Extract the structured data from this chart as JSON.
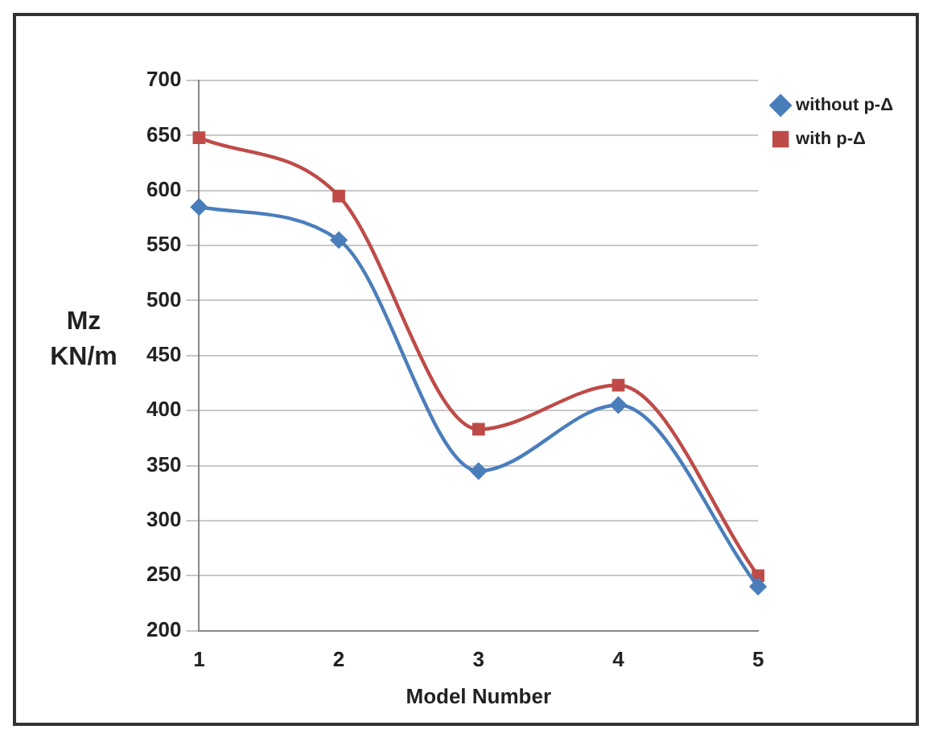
{
  "chart_data": {
    "type": "line",
    "xlabel": "Model Number",
    "ylabel": "Mz KN/m",
    "categories": [
      "1",
      "2",
      "3",
      "4",
      "5"
    ],
    "series": [
      {
        "name": "without p-Δ",
        "color": "#4a7ebb",
        "values": [
          585,
          555,
          345,
          405,
          240
        ],
        "marker": "diamond"
      },
      {
        "name": "with p-Δ",
        "color": "#be4b48",
        "values": [
          648,
          595,
          383,
          423,
          250
        ],
        "marker": "square"
      }
    ],
    "ylim": [
      200,
      700
    ],
    "yticks": [
      200,
      250,
      300,
      350,
      400,
      450,
      500,
      550,
      600,
      650,
      700
    ],
    "grid": "y",
    "legend": "top right"
  }
}
